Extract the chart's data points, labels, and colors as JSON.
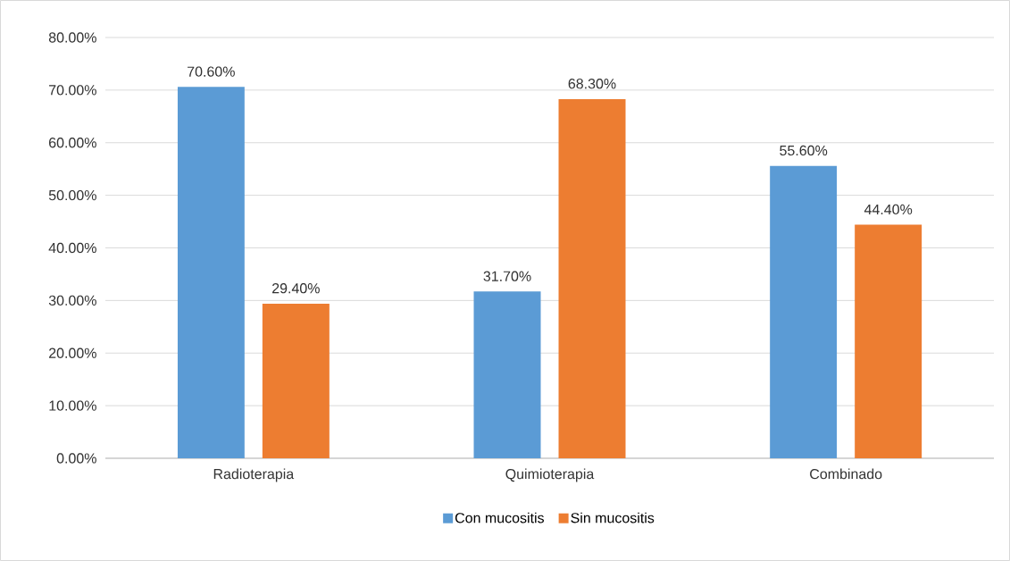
{
  "chart_data": {
    "type": "bar",
    "categories": [
      "Radioterapia",
      "Quimioterapia",
      "Combinado"
    ],
    "series": [
      {
        "name": "Con mucositis",
        "color": "#5b9bd5",
        "values": [
          70.6,
          31.7,
          55.6
        ],
        "value_labels": [
          "70.60%",
          "31.70%",
          "55.60%"
        ]
      },
      {
        "name": "Sin mucositis",
        "color": "#ed7d31",
        "values": [
          29.4,
          68.3,
          44.4
        ],
        "value_labels": [
          "29.40%",
          "68.30%",
          "44.40%"
        ]
      }
    ],
    "ylim": [
      0,
      80
    ],
    "yticks": [
      {
        "value": 0,
        "label": "0.00%"
      },
      {
        "value": 10,
        "label": "10.00%"
      },
      {
        "value": 20,
        "label": "20.00%"
      },
      {
        "value": 30,
        "label": "30.00%"
      },
      {
        "value": 40,
        "label": "40.00%"
      },
      {
        "value": 50,
        "label": "50.00%"
      },
      {
        "value": 60,
        "label": "60.00%"
      },
      {
        "value": 70,
        "label": "70.00%"
      },
      {
        "value": 80,
        "label": "80.00%"
      }
    ],
    "grid": "y",
    "legend": "bottom"
  }
}
